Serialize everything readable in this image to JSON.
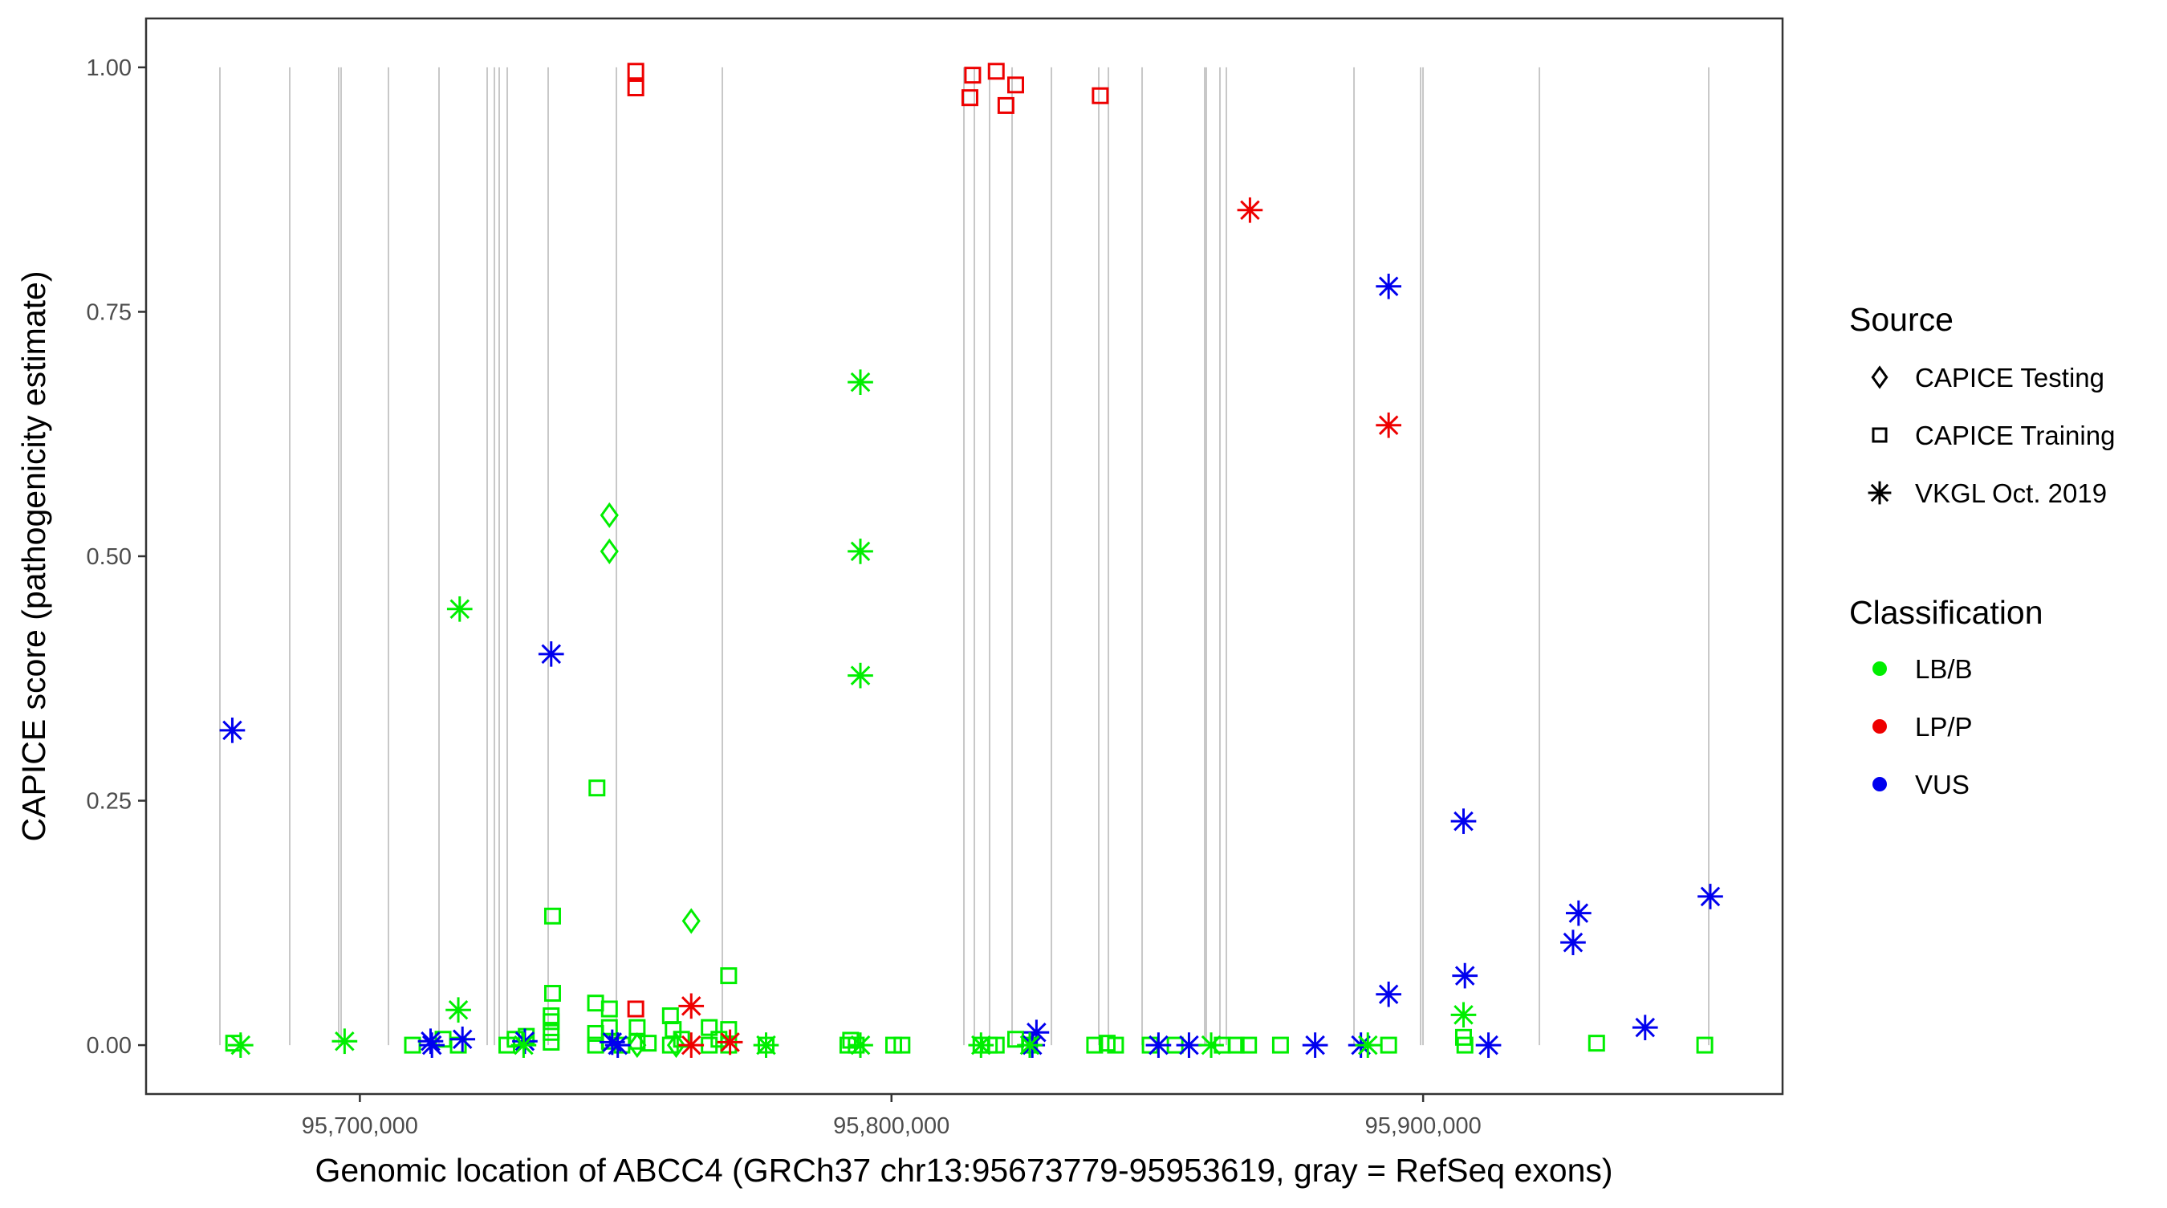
{
  "chart_data": {
    "type": "scatter",
    "title": "",
    "xlabel": "Genomic location of ABCC4 (GRCh37 chr13:95673779-95953619, gray = RefSeq exons)",
    "ylabel": "CAPICE score (pathogenicity estimate)",
    "xlim": [
      95659787,
      95967611
    ],
    "ylim": [
      -0.05,
      1.05
    ],
    "x_ticks": [
      95700000,
      95800000,
      95900000
    ],
    "x_tick_labels": [
      "95,700,000",
      "95,800,000",
      "95,900,000"
    ],
    "y_ticks": [
      0,
      0.25,
      0.5,
      0.75,
      1.0
    ],
    "y_tick_labels": [
      "0.00",
      "0.25",
      "0.50",
      "0.75",
      "1.00"
    ],
    "grid": false,
    "exon_color": "#c8c8c8",
    "exons": [
      95673676,
      95686811,
      95696020,
      95696473,
      95705380,
      95714891,
      95723949,
      95725308,
      95726214,
      95727724,
      95735423,
      95748255,
      95768183,
      95813625,
      95815588,
      95818456,
      95822684,
      95830081,
      95838988,
      95840800,
      95847141,
      95858916,
      95859218,
      95861785,
      95862993,
      95887000,
      95899527,
      95899980,
      95921871,
      95953725
    ],
    "legend": {
      "placement": "right",
      "source_title": "Source",
      "sources": [
        {
          "key": "testing",
          "label": "CAPICE Testing",
          "shape": "diamond"
        },
        {
          "key": "training",
          "label": "CAPICE Training",
          "shape": "square"
        },
        {
          "key": "vkgl",
          "label": "VKGL Oct. 2019",
          "shape": "asterisk"
        }
      ],
      "class_title": "Classification",
      "classes": [
        {
          "key": "LB/B",
          "label": "LB/B",
          "color": "#00ee00"
        },
        {
          "key": "LP/P",
          "label": "LP/P",
          "color": "#ee0000"
        },
        {
          "key": "VUS",
          "label": "VUS",
          "color": "#0000ee"
        }
      ]
    },
    "series": [
      {
        "source": "testing",
        "points": [
          [
            95746940,
            0.542,
            "LB/B"
          ],
          [
            95746940,
            0.505,
            "LB/B"
          ],
          [
            95762330,
            0.127,
            "LB/B"
          ],
          [
            95752160,
            0.0,
            "LB/B"
          ],
          [
            95759500,
            0.0,
            "LB/B"
          ]
        ]
      },
      {
        "source": "training",
        "points": [
          [
            95751900,
            0.996,
            "LP/P"
          ],
          [
            95751900,
            0.979,
            "LP/P"
          ],
          [
            95814750,
            0.969,
            "LP/P"
          ],
          [
            95815270,
            0.992,
            "LP/P"
          ],
          [
            95819700,
            0.996,
            "LP/P"
          ],
          [
            95821530,
            0.961,
            "LP/P"
          ],
          [
            95823360,
            0.982,
            "LP/P"
          ],
          [
            95839270,
            0.971,
            "LP/P"
          ],
          [
            95751900,
            0.037,
            "LP/P"
          ],
          [
            95744600,
            0.263,
            "LB/B"
          ],
          [
            95736250,
            0.132,
            "LB/B"
          ],
          [
            95736250,
            0.053,
            "LB/B"
          ],
          [
            95769370,
            0.071,
            "LB/B"
          ],
          [
            95769370,
            0.016,
            "LB/B"
          ],
          [
            95744340,
            0.043,
            "LB/B"
          ],
          [
            95746940,
            0.037,
            "LB/B"
          ],
          [
            95676270,
            0.002,
            "LB/B"
          ],
          [
            95709910,
            0.0,
            "LB/B"
          ],
          [
            95715650,
            0.006,
            "LB/B"
          ],
          [
            95718520,
            0.0,
            "LB/B"
          ],
          [
            95727650,
            0.0,
            "LB/B"
          ],
          [
            95729210,
            0.006,
            "LB/B"
          ],
          [
            95731300,
            0.009,
            "LB/B"
          ],
          [
            95735990,
            0.024,
            "LB/B"
          ],
          [
            95735990,
            0.013,
            "LB/B"
          ],
          [
            95735990,
            0.003,
            "LB/B"
          ],
          [
            95735990,
            0.03,
            "LB/B"
          ],
          [
            95744340,
            0.012,
            "LB/B"
          ],
          [
            95744340,
            0.0,
            "LB/B"
          ],
          [
            95746940,
            0.018,
            "LB/B"
          ],
          [
            95746940,
            0.004,
            "LB/B"
          ],
          [
            95749290,
            0.0,
            "LB/B"
          ],
          [
            95752160,
            0.018,
            "LB/B"
          ],
          [
            95752160,
            0.004,
            "LB/B"
          ],
          [
            95754250,
            0.002,
            "LB/B"
          ],
          [
            95758420,
            0.03,
            "LB/B"
          ],
          [
            95758940,
            0.016,
            "LB/B"
          ],
          [
            95758420,
            0.0,
            "LB/B"
          ],
          [
            95760510,
            0.006,
            "LB/B"
          ],
          [
            95765720,
            0.018,
            "LB/B"
          ],
          [
            95765720,
            0.0,
            "LB/B"
          ],
          [
            95767550,
            0.006,
            "LB/B"
          ],
          [
            95769370,
            0.0,
            "LB/B"
          ],
          [
            95776410,
            0.0,
            "LB/B"
          ],
          [
            95791800,
            0.0,
            "LB/B"
          ],
          [
            95792320,
            0.005,
            "LB/B"
          ],
          [
            95793370,
            0.0,
            "LB/B"
          ],
          [
            95800410,
            0.0,
            "LB/B"
          ],
          [
            95801970,
            0.0,
            "LB/B"
          ],
          [
            95816840,
            0.0,
            "LB/B"
          ],
          [
            95818400,
            0.0,
            "LB/B"
          ],
          [
            95819700,
            0.0,
            "LB/B"
          ],
          [
            95823360,
            0.006,
            "LB/B"
          ],
          [
            95825970,
            0.0,
            "LB/B"
          ],
          [
            95838220,
            0.0,
            "LB/B"
          ],
          [
            95840570,
            0.002,
            "LB/B"
          ],
          [
            95842140,
            0.0,
            "LB/B"
          ],
          [
            95848660,
            0.0,
            "LB/B"
          ],
          [
            95853350,
            0.0,
            "LB/B"
          ],
          [
            95862220,
            0.0,
            "LB/B"
          ],
          [
            95864830,
            0.0,
            "LB/B"
          ],
          [
            95867170,
            0.0,
            "LB/B"
          ],
          [
            95873170,
            0.0,
            "LB/B"
          ],
          [
            95893510,
            0.0,
            "LB/B"
          ],
          [
            95907600,
            0.008,
            "LB/B"
          ],
          [
            95907860,
            0.0,
            "LB/B"
          ],
          [
            95932630,
            0.002,
            "LB/B"
          ],
          [
            95952980,
            0.0,
            "LB/B"
          ]
        ]
      },
      {
        "source": "vkgl",
        "points": [
          [
            95867430,
            0.854,
            "LP/P"
          ],
          [
            95893510,
            0.634,
            "LP/P"
          ],
          [
            95762330,
            0.04,
            "LP/P"
          ],
          [
            95762330,
            0.0,
            "LP/P"
          ],
          [
            95769630,
            0.003,
            "LP/P"
          ],
          [
            95676010,
            0.322,
            "VUS"
          ],
          [
            95735990,
            0.4,
            "VUS"
          ],
          [
            95893510,
            0.776,
            "VUS"
          ],
          [
            95907600,
            0.229,
            "VUS"
          ],
          [
            95907860,
            0.071,
            "VUS"
          ],
          [
            95893510,
            0.052,
            "VUS"
          ],
          [
            95929240,
            0.135,
            "VUS"
          ],
          [
            95928200,
            0.105,
            "VUS"
          ],
          [
            95954020,
            0.152,
            "VUS"
          ],
          [
            95941760,
            0.018,
            "VUS"
          ],
          [
            95912290,
            0.0,
            "VUS"
          ],
          [
            95827270,
            0.013,
            "VUS"
          ],
          [
            95826490,
            0.0,
            "VUS"
          ],
          [
            95850220,
            0.0,
            "VUS"
          ],
          [
            95855960,
            0.0,
            "VUS"
          ],
          [
            95879690,
            0.0,
            "VUS"
          ],
          [
            95888300,
            0.0,
            "VUS"
          ],
          [
            95713300,
            0.004,
            "VUS"
          ],
          [
            95713560,
            0.0,
            "VUS"
          ],
          [
            95719300,
            0.006,
            "VUS"
          ],
          [
            95731035,
            0.004,
            "VUS"
          ],
          [
            95747470,
            0.003,
            "VUS"
          ],
          [
            95748510,
            0.0,
            "VUS"
          ],
          [
            95718780,
            0.446,
            "LB/B"
          ],
          [
            95718520,
            0.036,
            "LB/B"
          ],
          [
            95794150,
            0.678,
            "LB/B"
          ],
          [
            95794150,
            0.505,
            "LB/B"
          ],
          [
            95794150,
            0.378,
            "LB/B"
          ],
          [
            95697130,
            0.004,
            "LB/B"
          ],
          [
            95677570,
            0.0,
            "LB/B"
          ],
          [
            95907600,
            0.031,
            "LB/B"
          ],
          [
            95889600,
            0.0,
            "LB/B"
          ],
          [
            95860130,
            0.0,
            "LB/B"
          ],
          [
            95776410,
            0.0,
            "LB/B"
          ],
          [
            95730800,
            0.0,
            "LB/B"
          ],
          [
            95794150,
            0.0,
            "LB/B"
          ],
          [
            95816840,
            0.0,
            "LB/B"
          ],
          [
            95826000,
            0.0,
            "LB/B"
          ]
        ]
      }
    ]
  }
}
